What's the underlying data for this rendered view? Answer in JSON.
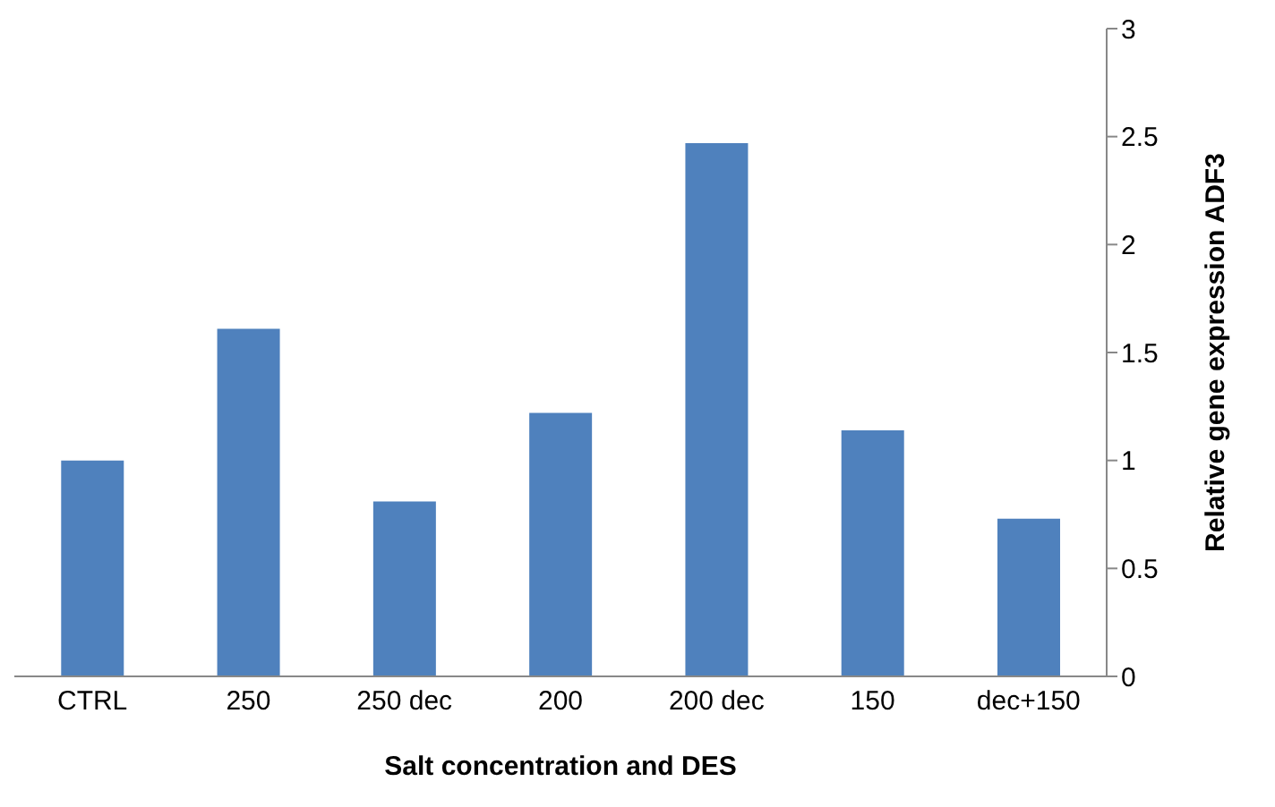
{
  "chart_data": {
    "type": "bar",
    "xlabel": "Salt concentration and DES",
    "ylabel": "Relative gene expression ADF3",
    "categories": [
      "CTRL",
      "250",
      "250 dec",
      "200",
      "200 dec",
      "150",
      "dec+150"
    ],
    "values": [
      1.0,
      1.61,
      0.81,
      1.22,
      2.47,
      1.14,
      0.73
    ],
    "color": "#4f81bd",
    "ylim": [
      0,
      3
    ],
    "yticks": [
      0,
      0.5,
      1,
      1.5,
      2,
      2.5,
      3
    ]
  }
}
